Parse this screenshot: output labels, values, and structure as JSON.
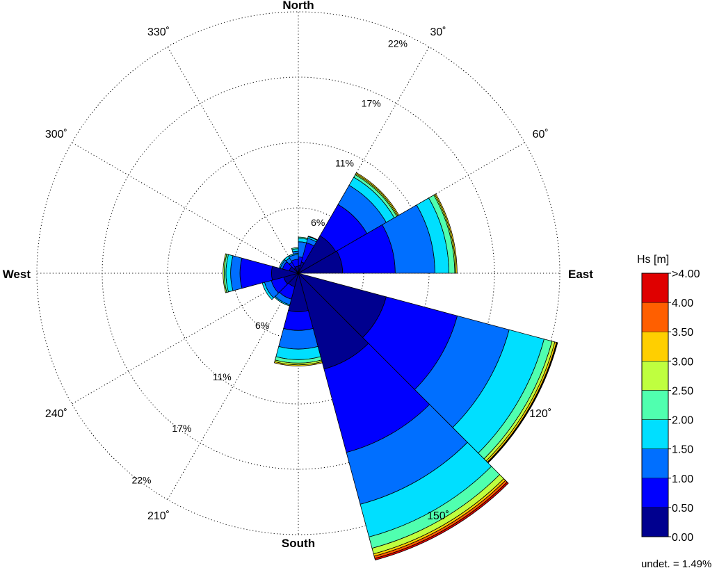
{
  "chart_data": {
    "type": "wind-rose",
    "variable": "Hs [m]",
    "direction_labels": {
      "north": "North",
      "east": "East",
      "south": "South",
      "west": "West"
    },
    "angle_labels": [
      {
        "angle": 30,
        "text": "30˚"
      },
      {
        "angle": 60,
        "text": "60˚"
      },
      {
        "angle": 120,
        "text": "120˚"
      },
      {
        "angle": 150,
        "text": "150˚"
      },
      {
        "angle": 210,
        "text": "210˚"
      },
      {
        "angle": 240,
        "text": "240˚"
      },
      {
        "angle": 300,
        "text": "300˚"
      },
      {
        "angle": 330,
        "text": "330˚"
      }
    ],
    "rings": [
      {
        "value": 5.6,
        "label": "6%"
      },
      {
        "value": 11.2,
        "label": "11%"
      },
      {
        "value": 16.8,
        "label": "17%"
      },
      {
        "value": 22.4,
        "label": "22%"
      }
    ],
    "rmax": 22.4,
    "bins": [
      "0.00",
      "0.50",
      "1.00",
      "1.50",
      "2.00",
      "2.50",
      "3.00",
      "3.50",
      "4.00",
      ">4.00"
    ],
    "bin_colors": [
      "#00008f",
      "#0000ff",
      "#006fff",
      "#00dfff",
      "#50ffaf",
      "#bfff3f",
      "#ffcf00",
      "#ff5f00",
      "#df0000"
    ],
    "sectors": [
      {
        "center": 0,
        "cumulative": [
          0.5,
          1.3,
          1.9,
          2.1,
          2.2
        ]
      },
      {
        "center": 15,
        "cumulative": [
          0.7,
          1.4,
          2.7,
          3.0,
          3.1
        ]
      },
      {
        "center": 30,
        "cumulative": [
          1.0,
          2.7,
          3.1,
          3.25,
          3.3
        ]
      },
      {
        "center": 45,
        "cumulative": [
          3.7,
          6.8,
          8.7,
          9.5,
          9.75,
          9.85,
          9.95
        ]
      },
      {
        "center": 75,
        "cumulative": [
          3.8,
          8.3,
          11.7,
          12.9,
          13.4,
          13.5,
          13.6
        ]
      },
      {
        "center": 120,
        "cumulative": [
          7.8,
          14.1,
          18.7,
          21.8,
          22.5,
          22.75,
          22.9,
          22.95,
          23.0
        ]
      },
      {
        "center": 150,
        "cumulative": [
          8.5,
          15.9,
          20.5,
          23.4,
          24.4,
          24.9,
          25.1,
          25.3,
          25.45
        ]
      },
      {
        "center": 180,
        "cumulative": [
          3.3,
          4.9,
          6.5,
          7.4,
          7.7,
          7.85,
          7.95
        ]
      },
      {
        "center": 210,
        "cumulative": [
          1.2,
          2.3,
          2.8,
          2.9
        ]
      },
      {
        "center": 240,
        "cumulative": [
          1.3,
          2.4,
          3.0,
          3.2
        ]
      },
      {
        "center": 270,
        "cumulative": [
          2.3,
          5.0,
          5.8,
          6.2,
          6.35,
          6.45
        ]
      },
      {
        "center": 300,
        "cumulative": [
          0.8,
          1.4,
          1.6,
          1.7
        ]
      },
      {
        "center": 330,
        "cumulative": [
          0.5,
          1.1,
          1.5,
          1.7
        ]
      },
      {
        "center": 345,
        "cumulative": [
          0.6,
          1.2,
          1.6,
          1.7
        ]
      }
    ],
    "sector_width_deg": 30,
    "grid": true,
    "legend_position": "right",
    "undetermined_label": "undet. = 1.49%"
  }
}
